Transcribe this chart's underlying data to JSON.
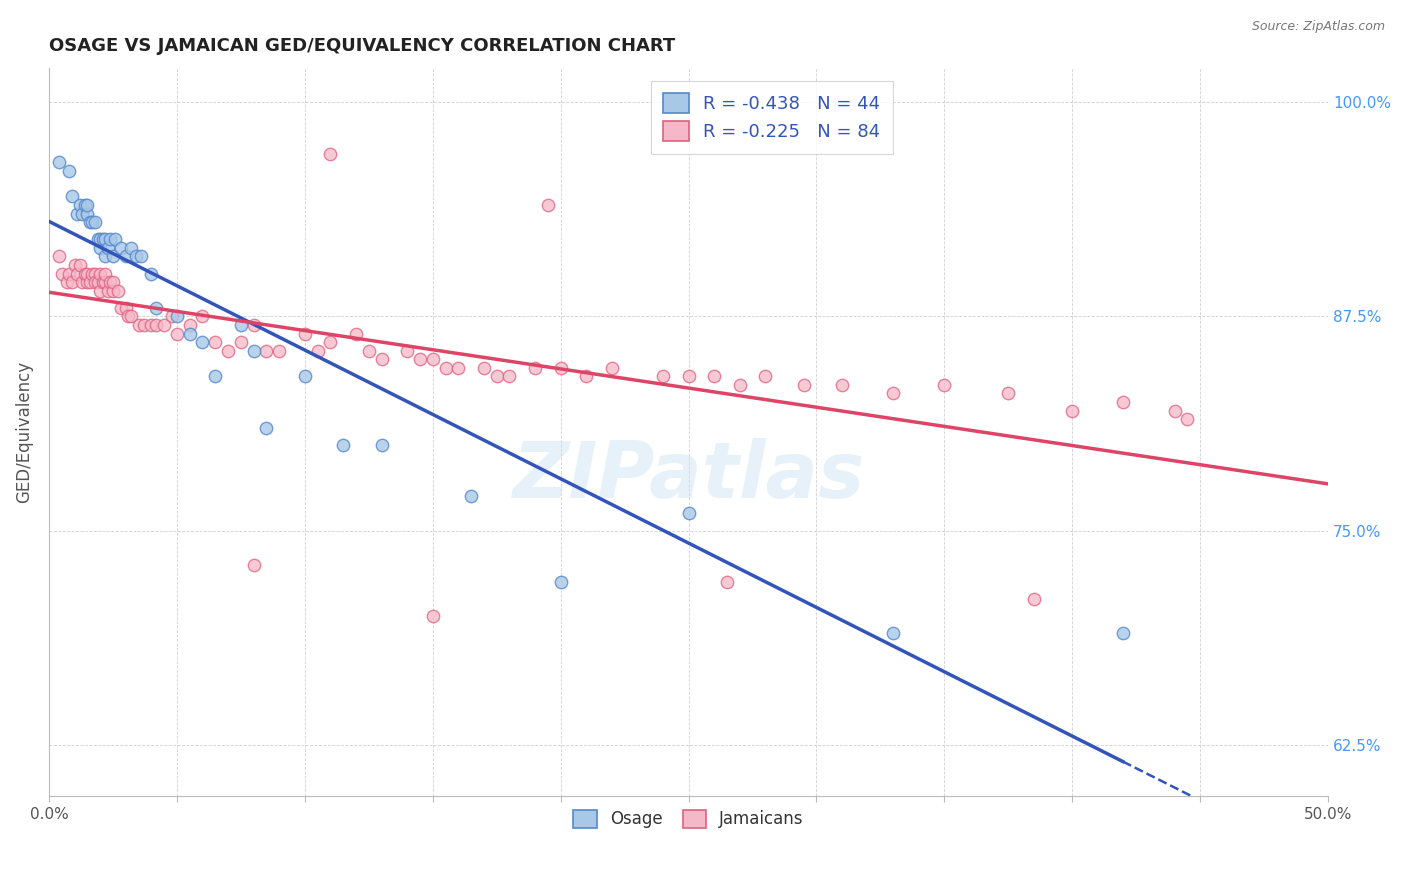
{
  "title": "OSAGE VS JAMAICAN GED/EQUIVALENCY CORRELATION CHART",
  "source": "Source: ZipAtlas.com",
  "ylabel": "GED/Equivalency",
  "xlim": [
    0.0,
    0.5
  ],
  "ylim": [
    0.595,
    1.02
  ],
  "xticks": [
    0.0,
    0.05,
    0.1,
    0.15,
    0.2,
    0.25,
    0.3,
    0.35,
    0.4,
    0.45,
    0.5
  ],
  "xtick_labels_show": {
    "0.0": "0.0%",
    "0.50": "50.0%"
  },
  "yticks": [
    0.625,
    0.75,
    0.875,
    1.0
  ],
  "ytick_labels": [
    "62.5%",
    "75.0%",
    "87.5%",
    "100.0%"
  ],
  "legend_labels": [
    "Osage",
    "Jamaicans"
  ],
  "legend_r_blue": "R = -0.438   N = 44",
  "legend_r_pink": "R = -0.225   N = 84",
  "blue_color": "#a8c8e8",
  "pink_color": "#f5b8c8",
  "blue_edge": "#5588cc",
  "pink_edge": "#e06080",
  "trend_blue_color": "#3355bb",
  "trend_pink_color": "#dd4466",
  "watermark": "ZIPatlas",
  "blue_scatter_x": [
    0.004,
    0.008,
    0.009,
    0.011,
    0.012,
    0.013,
    0.014,
    0.015,
    0.015,
    0.016,
    0.017,
    0.018,
    0.019,
    0.02,
    0.02,
    0.021,
    0.022,
    0.022,
    0.023,
    0.024,
    0.025,
    0.026,
    0.028,
    0.03,
    0.032,
    0.034,
    0.036,
    0.04,
    0.042,
    0.05,
    0.055,
    0.06,
    0.065,
    0.075,
    0.08,
    0.085,
    0.1,
    0.115,
    0.13,
    0.165,
    0.2,
    0.25,
    0.33,
    0.42
  ],
  "blue_scatter_y": [
    0.965,
    0.96,
    0.945,
    0.935,
    0.94,
    0.935,
    0.94,
    0.935,
    0.94,
    0.93,
    0.93,
    0.93,
    0.92,
    0.915,
    0.92,
    0.92,
    0.91,
    0.92,
    0.915,
    0.92,
    0.91,
    0.92,
    0.915,
    0.91,
    0.915,
    0.91,
    0.91,
    0.9,
    0.88,
    0.875,
    0.865,
    0.86,
    0.84,
    0.87,
    0.855,
    0.81,
    0.84,
    0.8,
    0.8,
    0.77,
    0.72,
    0.76,
    0.69,
    0.69
  ],
  "pink_scatter_x": [
    0.004,
    0.005,
    0.007,
    0.008,
    0.009,
    0.01,
    0.011,
    0.012,
    0.013,
    0.014,
    0.015,
    0.015,
    0.016,
    0.017,
    0.018,
    0.018,
    0.019,
    0.02,
    0.02,
    0.021,
    0.022,
    0.022,
    0.023,
    0.024,
    0.025,
    0.025,
    0.027,
    0.028,
    0.03,
    0.031,
    0.032,
    0.035,
    0.037,
    0.04,
    0.042,
    0.045,
    0.048,
    0.05,
    0.055,
    0.06,
    0.065,
    0.07,
    0.075,
    0.08,
    0.085,
    0.09,
    0.1,
    0.105,
    0.11,
    0.12,
    0.125,
    0.13,
    0.14,
    0.145,
    0.15,
    0.155,
    0.16,
    0.17,
    0.175,
    0.18,
    0.19,
    0.2,
    0.21,
    0.22,
    0.24,
    0.25,
    0.26,
    0.27,
    0.28,
    0.295,
    0.31,
    0.33,
    0.35,
    0.375,
    0.4,
    0.42,
    0.44,
    0.445,
    0.15,
    0.265,
    0.11,
    0.385,
    0.195,
    0.08
  ],
  "pink_scatter_y": [
    0.91,
    0.9,
    0.895,
    0.9,
    0.895,
    0.905,
    0.9,
    0.905,
    0.895,
    0.9,
    0.895,
    0.9,
    0.895,
    0.9,
    0.9,
    0.895,
    0.895,
    0.89,
    0.9,
    0.895,
    0.895,
    0.9,
    0.89,
    0.895,
    0.89,
    0.895,
    0.89,
    0.88,
    0.88,
    0.875,
    0.875,
    0.87,
    0.87,
    0.87,
    0.87,
    0.87,
    0.875,
    0.865,
    0.87,
    0.875,
    0.86,
    0.855,
    0.86,
    0.87,
    0.855,
    0.855,
    0.865,
    0.855,
    0.86,
    0.865,
    0.855,
    0.85,
    0.855,
    0.85,
    0.85,
    0.845,
    0.845,
    0.845,
    0.84,
    0.84,
    0.845,
    0.845,
    0.84,
    0.845,
    0.84,
    0.84,
    0.84,
    0.835,
    0.84,
    0.835,
    0.835,
    0.83,
    0.835,
    0.83,
    0.82,
    0.825,
    0.82,
    0.815,
    0.7,
    0.72,
    0.97,
    0.71,
    0.94,
    0.73
  ]
}
